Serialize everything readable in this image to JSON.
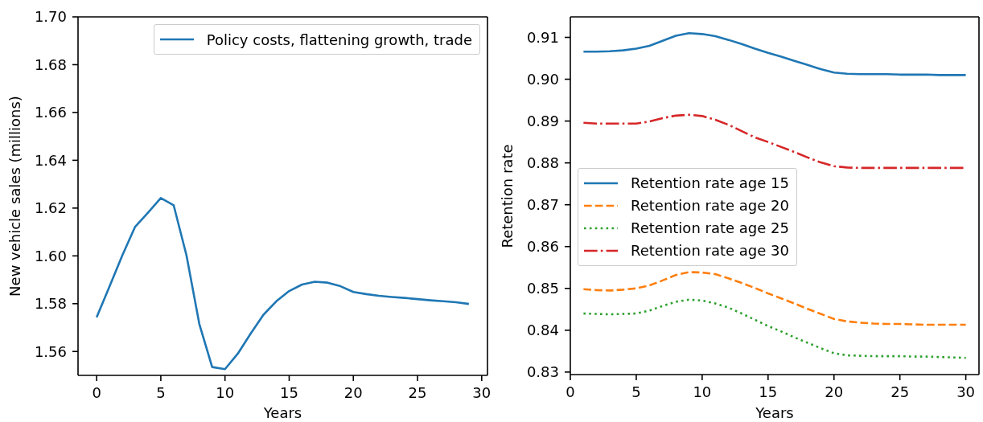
{
  "chart_data": [
    {
      "type": "line",
      "xlabel": "Years",
      "ylabel": "New vehicle sales (millions)",
      "x": [
        0,
        1,
        2,
        3,
        4,
        5,
        6,
        7,
        8,
        9,
        10,
        11,
        12,
        13,
        14,
        15,
        16,
        17,
        18,
        19,
        20,
        21,
        22,
        23,
        24,
        25,
        26,
        27,
        28,
        29
      ],
      "series": [
        {
          "name": "Policy costs, flattening growth, trade",
          "color": "#1f77b4",
          "line_style": "solid",
          "values": [
            1.5743,
            1.5872,
            1.6002,
            1.6122,
            1.6181,
            1.6242,
            1.6212,
            1.6002,
            1.5715,
            1.5535,
            1.5526,
            1.5591,
            1.5675,
            1.5754,
            1.581,
            1.5853,
            1.588,
            1.5892,
            1.5888,
            1.5873,
            1.5849,
            1.584,
            1.5833,
            1.5828,
            1.5824,
            1.5819,
            1.5814,
            1.581,
            1.5806,
            1.5799
          ]
        }
      ],
      "xlim": [
        -1.45,
        30.45
      ],
      "xticks": [
        0,
        5,
        10,
        15,
        20,
        25,
        30
      ],
      "ylim": [
        1.55,
        1.7
      ],
      "yticks": [
        1.56,
        1.58,
        {
          "value": 1.6,
          "label": "1.60"
        },
        1.62,
        1.64,
        1.66,
        1.68,
        {
          "value": 1.7,
          "label": "1.70"
        }
      ],
      "legend": "top right"
    },
    {
      "type": "line",
      "xlabel": "Years",
      "ylabel": "Retention rate",
      "x": [
        1,
        2,
        3,
        4,
        5,
        6,
        7,
        8,
        9,
        10,
        11,
        12,
        13,
        14,
        15,
        16,
        17,
        18,
        19,
        20,
        21,
        22,
        23,
        24,
        25,
        26,
        27,
        28,
        29,
        30
      ],
      "series": [
        {
          "name": "Retention rate age 15",
          "color": "#1f77b4",
          "line_style": "solid",
          "values": [
            0.9066,
            0.9066,
            0.9067,
            0.9069,
            0.9073,
            0.908,
            0.9092,
            0.9104,
            0.911,
            0.9108,
            0.9103,
            0.9094,
            0.9084,
            0.9073,
            0.9063,
            0.9054,
            0.9044,
            0.9034,
            0.9024,
            0.9016,
            0.9013,
            0.9012,
            0.9012,
            0.9012,
            0.9011,
            0.9011,
            0.9011,
            0.901,
            0.901,
            0.901
          ]
        },
        {
          "name": "Retention rate age 20",
          "color": "#ff7f0e",
          "line_style": "dashed",
          "values": [
            0.8498,
            0.8496,
            0.8495,
            0.8497,
            0.85,
            0.8507,
            0.8519,
            0.8532,
            0.8539,
            0.8538,
            0.8534,
            0.8524,
            0.8513,
            0.8501,
            0.8488,
            0.8476,
            0.8464,
            0.8451,
            0.8439,
            0.8427,
            0.8421,
            0.8418,
            0.8416,
            0.8415,
            0.8415,
            0.8414,
            0.8413,
            0.8413,
            0.8413,
            0.8413
          ]
        },
        {
          "name": "Retention rate age 25",
          "color": "#2ca02c",
          "line_style": "dotted",
          "values": [
            0.844,
            0.8439,
            0.8438,
            0.8439,
            0.844,
            0.8447,
            0.8458,
            0.8468,
            0.8473,
            0.8471,
            0.8464,
            0.8454,
            0.844,
            0.8425,
            0.841,
            0.8397,
            0.8383,
            0.837,
            0.8357,
            0.8345,
            0.834,
            0.8339,
            0.8338,
            0.8338,
            0.8338,
            0.8337,
            0.8337,
            0.8336,
            0.8335,
            0.8334
          ]
        },
        {
          "name": "Retention rate age 30",
          "color": "#d62728",
          "line_style": "dashdot",
          "values": [
            0.8896,
            0.8894,
            0.8894,
            0.8894,
            0.8894,
            0.8899,
            0.8907,
            0.8913,
            0.8915,
            0.8912,
            0.8903,
            0.8891,
            0.8876,
            0.8861,
            0.885,
            0.8838,
            0.8826,
            0.8813,
            0.8801,
            0.8792,
            0.8789,
            0.8788,
            0.8788,
            0.8788,
            0.8788,
            0.8788,
            0.8788,
            0.8788,
            0.8788,
            0.8788
          ]
        }
      ],
      "xlim": [
        0,
        31
      ],
      "xticks": [
        0,
        5,
        10,
        15,
        20,
        25,
        30
      ],
      "ylim": [
        0.8294,
        0.9149
      ],
      "yticks": [
        0.83,
        0.84,
        0.85,
        0.86,
        0.87,
        0.88,
        0.89,
        {
          "value": 0.9,
          "label": "0.90"
        },
        0.91
      ],
      "legend": "center left"
    }
  ]
}
